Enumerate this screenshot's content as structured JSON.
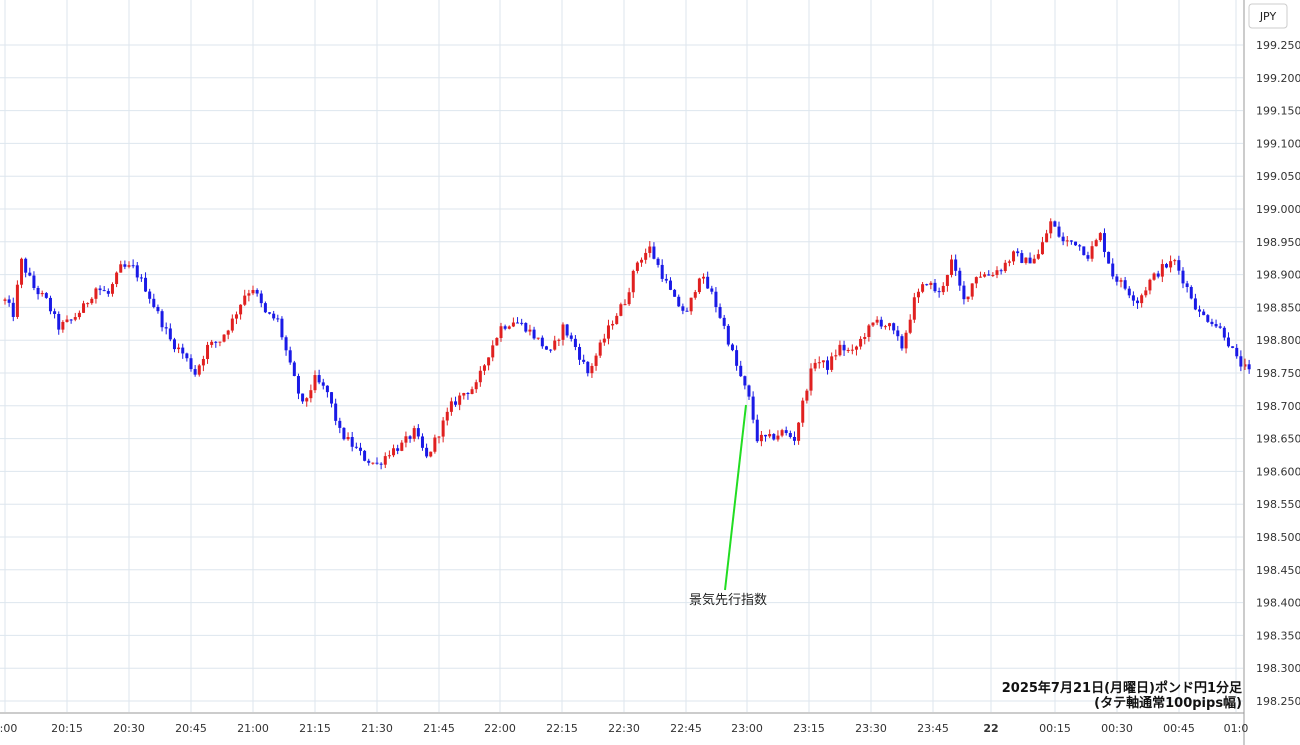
{
  "currency_badge": "JPY",
  "caption": {
    "line1": "2025年7月21日(月曜日)ポンド円1分足",
    "line2": "(タテ軸通常100pips幅)"
  },
  "annotation": {
    "label": "景気先行指数"
  },
  "colors": {
    "up": "#e02020",
    "down": "#1a1ae6",
    "grid": "#dde6ee",
    "annotation_line": "#22dd22"
  },
  "chart_data": {
    "type": "candlestick",
    "title": "",
    "ylim": [
      198.225,
      199.275
    ],
    "y_ticks": [
      "199.250",
      "199.200",
      "199.150",
      "199.100",
      "199.050",
      "199.000",
      "198.950",
      "198.900",
      "198.850",
      "198.800",
      "198.750",
      "198.700",
      "198.650",
      "198.600",
      "198.550",
      "198.500",
      "198.450",
      "198.400",
      "198.350",
      "198.300",
      "198.250"
    ],
    "x_ticks": [
      "0:00",
      "20:15",
      "20:30",
      "20:45",
      "21:00",
      "21:15",
      "21:30",
      "21:45",
      "22:00",
      "22:15",
      "22:30",
      "22:45",
      "23:00",
      "23:15",
      "23:30",
      "23:45",
      "22",
      "00:15",
      "00:30",
      "00:45",
      "01:0"
    ],
    "x_ticks_bold": [
      "22"
    ],
    "price_path": [
      [
        "20:00",
        198.86
      ],
      [
        "20:02",
        198.84
      ],
      [
        "20:04",
        198.92
      ],
      [
        "20:07",
        198.88
      ],
      [
        "20:10",
        198.86
      ],
      [
        "20:13",
        198.82
      ],
      [
        "20:16",
        198.83
      ],
      [
        "20:19",
        198.85
      ],
      [
        "20:22",
        198.88
      ],
      [
        "20:25",
        198.87
      ],
      [
        "20:28",
        198.91
      ],
      [
        "20:31",
        198.91
      ],
      [
        "20:34",
        198.88
      ],
      [
        "20:37",
        198.84
      ],
      [
        "20:40",
        198.8
      ],
      [
        "20:43",
        198.78
      ],
      [
        "20:46",
        198.75
      ],
      [
        "20:49",
        198.79
      ],
      [
        "20:52",
        198.8
      ],
      [
        "20:55",
        198.83
      ],
      [
        "20:58",
        198.87
      ],
      [
        "21:00",
        198.88
      ],
      [
        "21:03",
        198.84
      ],
      [
        "21:06",
        198.83
      ],
      [
        "21:09",
        198.76
      ],
      [
        "21:12",
        198.7
      ],
      [
        "21:15",
        198.74
      ],
      [
        "21:18",
        198.72
      ],
      [
        "21:21",
        198.66
      ],
      [
        "21:24",
        198.64
      ],
      [
        "21:27",
        198.62
      ],
      [
        "21:30",
        198.61
      ],
      [
        "21:33",
        198.63
      ],
      [
        "21:36",
        198.64
      ],
      [
        "21:39",
        198.66
      ],
      [
        "21:42",
        198.62
      ],
      [
        "21:45",
        198.66
      ],
      [
        "21:48",
        198.7
      ],
      [
        "21:51",
        198.72
      ],
      [
        "21:54",
        198.73
      ],
      [
        "21:57",
        198.78
      ],
      [
        "22:00",
        198.82
      ],
      [
        "22:03",
        198.83
      ],
      [
        "22:06",
        198.82
      ],
      [
        "22:09",
        198.8
      ],
      [
        "22:12",
        198.78
      ],
      [
        "22:15",
        198.82
      ],
      [
        "22:18",
        198.79
      ],
      [
        "22:21",
        198.75
      ],
      [
        "22:24",
        198.79
      ],
      [
        "22:27",
        198.83
      ],
      [
        "22:30",
        198.86
      ],
      [
        "22:33",
        198.92
      ],
      [
        "22:36",
        198.94
      ],
      [
        "22:39",
        198.9
      ],
      [
        "22:42",
        198.86
      ],
      [
        "22:45",
        198.84
      ],
      [
        "22:48",
        198.9
      ],
      [
        "22:51",
        198.87
      ],
      [
        "22:54",
        198.82
      ],
      [
        "22:57",
        198.76
      ],
      [
        "23:00",
        198.71
      ],
      [
        "23:02",
        198.65
      ],
      [
        "23:05",
        198.65
      ],
      [
        "23:08",
        198.66
      ],
      [
        "23:11",
        198.65
      ],
      [
        "23:14",
        198.73
      ],
      [
        "23:16",
        198.77
      ],
      [
        "23:19",
        198.76
      ],
      [
        "23:22",
        198.79
      ],
      [
        "23:25",
        198.78
      ],
      [
        "23:28",
        198.81
      ],
      [
        "23:31",
        198.83
      ],
      [
        "23:34",
        198.82
      ],
      [
        "23:37",
        198.79
      ],
      [
        "23:40",
        198.86
      ],
      [
        "23:43",
        198.89
      ],
      [
        "23:46",
        198.87
      ],
      [
        "23:49",
        198.92
      ],
      [
        "23:52",
        198.86
      ],
      [
        "23:55",
        198.9
      ],
      [
        "23:58",
        198.9
      ],
      [
        "00:01",
        198.91
      ],
      [
        "00:04",
        198.93
      ],
      [
        "00:07",
        198.92
      ],
      [
        "00:10",
        198.93
      ],
      [
        "00:13",
        198.98
      ],
      [
        "00:16",
        198.95
      ],
      [
        "00:19",
        198.95
      ],
      [
        "00:22",
        198.93
      ],
      [
        "00:25",
        198.96
      ],
      [
        "00:28",
        198.9
      ],
      [
        "00:31",
        198.88
      ],
      [
        "00:34",
        198.86
      ],
      [
        "00:37",
        198.89
      ],
      [
        "00:40",
        198.91
      ],
      [
        "00:43",
        198.92
      ],
      [
        "00:46",
        198.88
      ],
      [
        "00:49",
        198.84
      ],
      [
        "00:52",
        198.83
      ],
      [
        "00:55",
        198.81
      ],
      [
        "00:58",
        198.77
      ],
      [
        "01:01",
        198.75
      ]
    ]
  }
}
